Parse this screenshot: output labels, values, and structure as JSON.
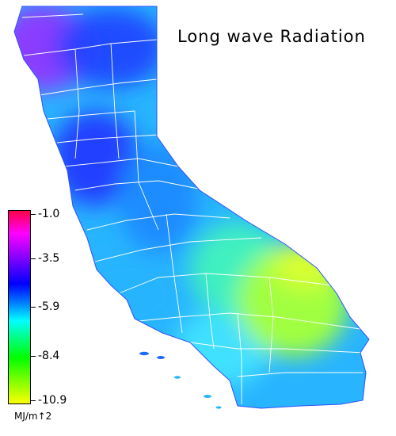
{
  "title": "Long wave Radiation",
  "legend": {
    "ticks": [
      "-1.0",
      "-3.5",
      "-5.9",
      "-8.4",
      "-10.9"
    ],
    "units": "MJ/m↑2",
    "colors": [
      "#ff0040",
      "#ff00ff",
      "#8000ff",
      "#0000ff",
      "#0080ff",
      "#00ffff",
      "#00ff80",
      "#00ff00",
      "#80ff00",
      "#ffff00"
    ]
  },
  "map": {
    "region": "California",
    "colors": {
      "north_coast": "#8a3cff",
      "valley": "#2040ff",
      "sierra": "#1e8cff",
      "coast": "#28b4ff",
      "south": "#40e0ff",
      "desert_west": "#40f0c0",
      "desert_east": "#a0ff40",
      "desert_core": "#d8ff30",
      "borders": "#ffffff"
    }
  }
}
